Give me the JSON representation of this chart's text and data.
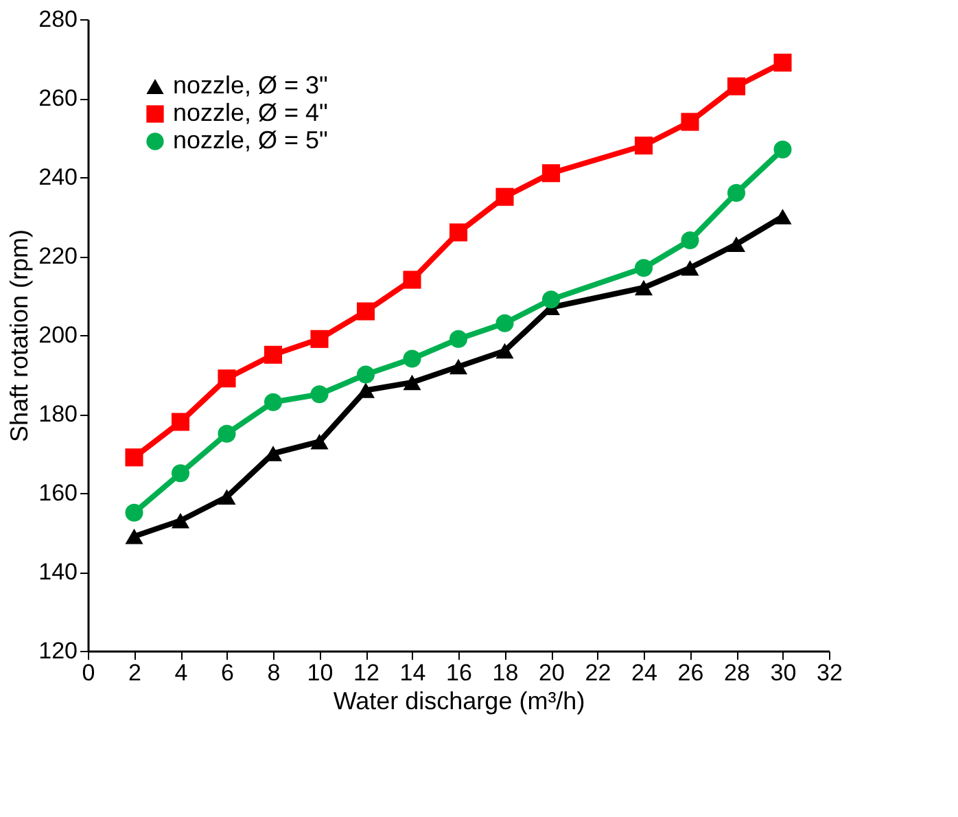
{
  "chart_data": {
    "type": "line",
    "xlabel": "Water discharge (m³/h)",
    "ylabel": "Shaft rotation (rpm)",
    "x": [
      2,
      4,
      6,
      8,
      10,
      12,
      14,
      16,
      18,
      20,
      24,
      26,
      28,
      30
    ],
    "xlim": [
      0,
      32
    ],
    "xticks": [
      0,
      2,
      4,
      6,
      8,
      10,
      12,
      14,
      16,
      18,
      20,
      22,
      24,
      26,
      28,
      30,
      32
    ],
    "ylim": [
      120,
      280
    ],
    "yticks": [
      120,
      140,
      160,
      180,
      200,
      220,
      240,
      260,
      280
    ],
    "grid": false,
    "legend": "top left",
    "line_style": "solid",
    "series": [
      {
        "name": "nozzle, Ø = 3\"",
        "color": "#000000",
        "marker": "triangle",
        "values": [
          149,
          153,
          159,
          170,
          173,
          186,
          188,
          192,
          196,
          207,
          212,
          217,
          223,
          230
        ]
      },
      {
        "name": "nozzle, Ø = 4\"",
        "color": "#ff0000",
        "marker": "square",
        "values": [
          169,
          178,
          189,
          195,
          199,
          206,
          214,
          226,
          235,
          241,
          248,
          254,
          263,
          269
        ]
      },
      {
        "name": "nozzle, Ø = 5\"",
        "color": "#00b050",
        "marker": "circle",
        "values": [
          155,
          165,
          175,
          183,
          185,
          190,
          194,
          199,
          203,
          209,
          217,
          224,
          236,
          247
        ]
      }
    ]
  }
}
